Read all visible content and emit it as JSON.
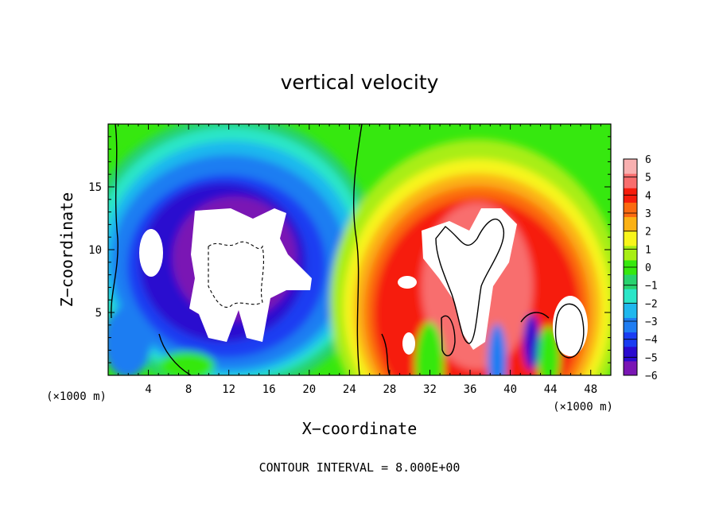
{
  "chart_data": {
    "type": "heatmap",
    "title": "vertical velocity",
    "xlabel": "X−coordinate",
    "ylabel": "Z−coordinate",
    "x_unit": "(×1000 m)",
    "y_unit": "(×1000 m)",
    "xlim": [
      0,
      50
    ],
    "ylim": [
      0,
      20
    ],
    "x_ticks": [
      4,
      8,
      12,
      16,
      20,
      24,
      28,
      32,
      36,
      40,
      44,
      48
    ],
    "x_tick_labels": [
      "4",
      "8",
      "12",
      "16",
      "20",
      "24",
      "28",
      "32",
      "36",
      "40",
      "44",
      "48"
    ],
    "y_ticks": [
      5,
      10,
      15
    ],
    "y_tick_labels": [
      "5",
      "10",
      "15"
    ],
    "colorbar": {
      "levels": [
        -6,
        -5,
        -4,
        -3,
        -2,
        -1,
        0,
        1,
        2,
        3,
        4,
        5,
        6
      ],
      "labels": [
        "−6",
        "−5",
        "−4",
        "−3",
        "−2",
        "−1",
        "0",
        "1",
        "2",
        "3",
        "4",
        "5",
        "6"
      ],
      "colors": [
        "#7a16b4",
        "#2a0acf",
        "#1a3cf2",
        "#1f7df2",
        "#1fb8ee",
        "#2be6c8",
        "#28d26e",
        "#36e80f",
        "#a8ee14",
        "#f8f51b",
        "#fbb114",
        "#fb6a10",
        "#f61c0c",
        "#f86e6e",
        "#f8b0b0"
      ]
    },
    "contour_interval": "CONTOUR INTERVAL = 8.000E+00",
    "features": [
      {
        "kind": "downdraft",
        "x_center": 13,
        "z_center": 9,
        "sign": -1
      },
      {
        "kind": "updraft",
        "x_center": 37,
        "z_center": 10,
        "sign": 1
      },
      {
        "kind": "updraft",
        "x_center": 45,
        "z_center": 4,
        "sign": 1
      }
    ]
  }
}
